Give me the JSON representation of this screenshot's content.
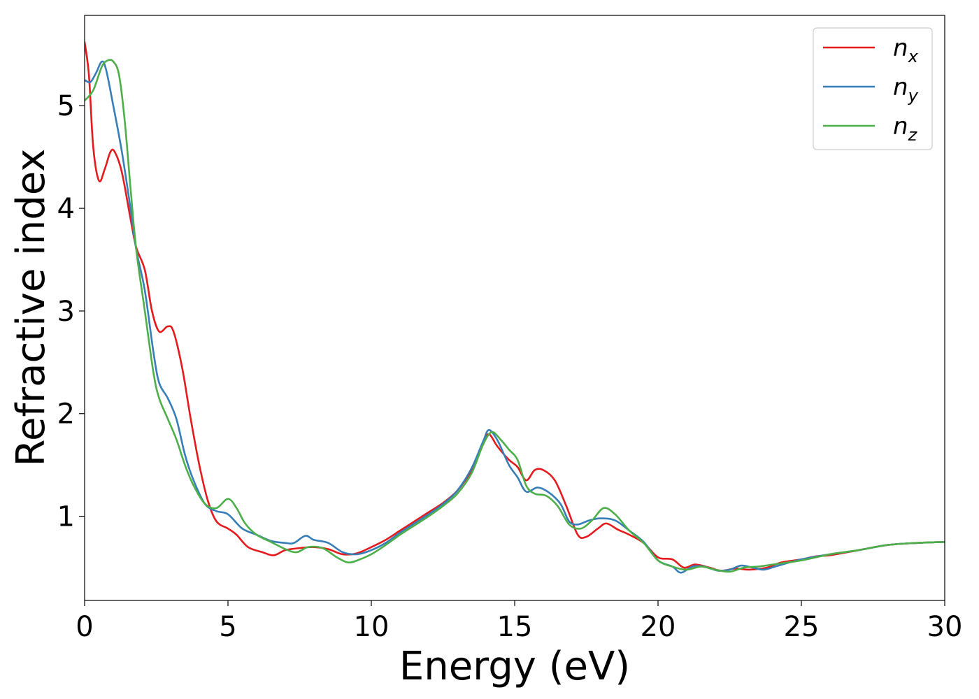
{
  "chart_data": {
    "type": "line",
    "title": "",
    "xlabel": "Energy (eV)",
    "ylabel": "Refractive index",
    "xlim": [
      0,
      30
    ],
    "ylim": [
      0.18,
      5.88
    ],
    "xticks": [
      0,
      5,
      10,
      15,
      20,
      25,
      30
    ],
    "yticks": [
      1,
      2,
      3,
      4,
      5
    ],
    "grid": false,
    "legend_position": "top-right",
    "series": [
      {
        "name": "n_x",
        "label_base": "n",
        "label_sub": "x",
        "color": "#e41a1c",
        "points": [
          [
            0,
            5.62
          ],
          [
            0.15,
            5.3
          ],
          [
            0.3,
            4.6
          ],
          [
            0.5,
            4.27
          ],
          [
            0.7,
            4.38
          ],
          [
            0.9,
            4.55
          ],
          [
            1.05,
            4.55
          ],
          [
            1.3,
            4.35
          ],
          [
            1.6,
            3.9
          ],
          [
            1.8,
            3.62
          ],
          [
            2.1,
            3.4
          ],
          [
            2.35,
            3.0
          ],
          [
            2.6,
            2.8
          ],
          [
            2.9,
            2.85
          ],
          [
            3.1,
            2.8
          ],
          [
            3.4,
            2.45
          ],
          [
            3.7,
            1.95
          ],
          [
            4.0,
            1.5
          ],
          [
            4.3,
            1.15
          ],
          [
            4.6,
            0.95
          ],
          [
            5.0,
            0.88
          ],
          [
            5.3,
            0.82
          ],
          [
            5.7,
            0.7
          ],
          [
            6.2,
            0.65
          ],
          [
            6.6,
            0.62
          ],
          [
            7.0,
            0.67
          ],
          [
            7.5,
            0.69
          ],
          [
            8.0,
            0.7
          ],
          [
            8.5,
            0.68
          ],
          [
            9.0,
            0.63
          ],
          [
            9.5,
            0.64
          ],
          [
            10.0,
            0.7
          ],
          [
            10.5,
            0.77
          ],
          [
            11.0,
            0.86
          ],
          [
            11.5,
            0.95
          ],
          [
            12.0,
            1.04
          ],
          [
            12.5,
            1.13
          ],
          [
            13.0,
            1.25
          ],
          [
            13.5,
            1.45
          ],
          [
            13.9,
            1.7
          ],
          [
            14.1,
            1.8
          ],
          [
            14.4,
            1.68
          ],
          [
            14.8,
            1.55
          ],
          [
            15.1,
            1.48
          ],
          [
            15.4,
            1.35
          ],
          [
            15.7,
            1.45
          ],
          [
            16.0,
            1.45
          ],
          [
            16.4,
            1.35
          ],
          [
            16.8,
            1.1
          ],
          [
            17.2,
            0.82
          ],
          [
            17.5,
            0.8
          ],
          [
            17.9,
            0.88
          ],
          [
            18.2,
            0.93
          ],
          [
            18.6,
            0.87
          ],
          [
            19.0,
            0.82
          ],
          [
            19.5,
            0.74
          ],
          [
            20.0,
            0.6
          ],
          [
            20.5,
            0.58
          ],
          [
            20.9,
            0.5
          ],
          [
            21.3,
            0.53
          ],
          [
            21.8,
            0.5
          ],
          [
            22.2,
            0.47
          ],
          [
            22.7,
            0.49
          ],
          [
            23.2,
            0.48
          ],
          [
            23.8,
            0.5
          ],
          [
            24.3,
            0.55
          ],
          [
            25.0,
            0.58
          ],
          [
            25.5,
            0.61
          ],
          [
            26.0,
            0.62
          ],
          [
            27.0,
            0.67
          ],
          [
            28.0,
            0.72
          ],
          [
            29.0,
            0.74
          ],
          [
            30.0,
            0.75
          ]
        ]
      },
      {
        "name": "n_y",
        "label_base": "n",
        "label_sub": "y",
        "color": "#377eb8",
        "points": [
          [
            0,
            5.25
          ],
          [
            0.2,
            5.23
          ],
          [
            0.4,
            5.32
          ],
          [
            0.6,
            5.43
          ],
          [
            0.75,
            5.35
          ],
          [
            1.0,
            5.0
          ],
          [
            1.3,
            4.55
          ],
          [
            1.6,
            4.0
          ],
          [
            1.8,
            3.6
          ],
          [
            2.1,
            3.2
          ],
          [
            2.4,
            2.6
          ],
          [
            2.6,
            2.3
          ],
          [
            2.9,
            2.15
          ],
          [
            3.2,
            1.95
          ],
          [
            3.5,
            1.6
          ],
          [
            3.8,
            1.35
          ],
          [
            4.2,
            1.12
          ],
          [
            4.6,
            1.05
          ],
          [
            5.0,
            1.02
          ],
          [
            5.5,
            0.88
          ],
          [
            6.0,
            0.82
          ],
          [
            6.5,
            0.76
          ],
          [
            7.0,
            0.74
          ],
          [
            7.3,
            0.74
          ],
          [
            7.7,
            0.81
          ],
          [
            8.0,
            0.77
          ],
          [
            8.5,
            0.74
          ],
          [
            9.0,
            0.65
          ],
          [
            9.5,
            0.63
          ],
          [
            10.0,
            0.67
          ],
          [
            10.5,
            0.74
          ],
          [
            11.0,
            0.84
          ],
          [
            11.5,
            0.93
          ],
          [
            12.0,
            1.02
          ],
          [
            12.5,
            1.12
          ],
          [
            13.0,
            1.25
          ],
          [
            13.5,
            1.47
          ],
          [
            13.9,
            1.73
          ],
          [
            14.1,
            1.84
          ],
          [
            14.4,
            1.74
          ],
          [
            14.8,
            1.5
          ],
          [
            15.1,
            1.38
          ],
          [
            15.4,
            1.24
          ],
          [
            15.8,
            1.28
          ],
          [
            16.2,
            1.23
          ],
          [
            16.6,
            1.12
          ],
          [
            16.9,
            0.95
          ],
          [
            17.2,
            0.92
          ],
          [
            17.6,
            0.96
          ],
          [
            18.0,
            0.98
          ],
          [
            18.5,
            0.96
          ],
          [
            19.0,
            0.86
          ],
          [
            19.5,
            0.75
          ],
          [
            20.0,
            0.57
          ],
          [
            20.5,
            0.51
          ],
          [
            20.8,
            0.45
          ],
          [
            21.2,
            0.51
          ],
          [
            21.6,
            0.51
          ],
          [
            22.1,
            0.47
          ],
          [
            22.5,
            0.48
          ],
          [
            22.9,
            0.52
          ],
          [
            23.3,
            0.5
          ],
          [
            23.7,
            0.48
          ],
          [
            24.2,
            0.52
          ],
          [
            25.0,
            0.58
          ],
          [
            26.0,
            0.63
          ],
          [
            27.0,
            0.67
          ],
          [
            28.0,
            0.72
          ],
          [
            29.0,
            0.74
          ],
          [
            30.0,
            0.75
          ]
        ]
      },
      {
        "name": "n_z",
        "label_base": "n",
        "label_sub": "z",
        "color": "#4daf4a",
        "points": [
          [
            0,
            5.05
          ],
          [
            0.3,
            5.15
          ],
          [
            0.6,
            5.38
          ],
          [
            0.8,
            5.44
          ],
          [
            1.0,
            5.43
          ],
          [
            1.2,
            5.3
          ],
          [
            1.4,
            4.85
          ],
          [
            1.6,
            4.2
          ],
          [
            1.8,
            3.6
          ],
          [
            2.1,
            3.0
          ],
          [
            2.4,
            2.4
          ],
          [
            2.6,
            2.15
          ],
          [
            2.9,
            1.95
          ],
          [
            3.2,
            1.75
          ],
          [
            3.5,
            1.5
          ],
          [
            3.8,
            1.3
          ],
          [
            4.2,
            1.12
          ],
          [
            4.6,
            1.08
          ],
          [
            5.0,
            1.17
          ],
          [
            5.3,
            1.08
          ],
          [
            5.6,
            0.93
          ],
          [
            6.0,
            0.82
          ],
          [
            6.5,
            0.75
          ],
          [
            7.0,
            0.68
          ],
          [
            7.4,
            0.65
          ],
          [
            7.8,
            0.7
          ],
          [
            8.3,
            0.69
          ],
          [
            8.8,
            0.6
          ],
          [
            9.2,
            0.55
          ],
          [
            9.6,
            0.58
          ],
          [
            10.0,
            0.63
          ],
          [
            10.5,
            0.72
          ],
          [
            11.0,
            0.82
          ],
          [
            11.5,
            0.91
          ],
          [
            12.0,
            1.0
          ],
          [
            12.5,
            1.1
          ],
          [
            13.0,
            1.22
          ],
          [
            13.5,
            1.42
          ],
          [
            13.9,
            1.7
          ],
          [
            14.2,
            1.82
          ],
          [
            14.5,
            1.75
          ],
          [
            14.8,
            1.65
          ],
          [
            15.1,
            1.55
          ],
          [
            15.4,
            1.3
          ],
          [
            15.7,
            1.22
          ],
          [
            16.1,
            1.2
          ],
          [
            16.5,
            1.1
          ],
          [
            16.9,
            0.92
          ],
          [
            17.3,
            0.88
          ],
          [
            17.7,
            0.96
          ],
          [
            18.1,
            1.08
          ],
          [
            18.5,
            1.02
          ],
          [
            19.0,
            0.86
          ],
          [
            19.5,
            0.74
          ],
          [
            20.0,
            0.57
          ],
          [
            20.5,
            0.51
          ],
          [
            21.0,
            0.48
          ],
          [
            21.5,
            0.51
          ],
          [
            22.0,
            0.48
          ],
          [
            22.5,
            0.46
          ],
          [
            23.0,
            0.5
          ],
          [
            23.5,
            0.51
          ],
          [
            24.0,
            0.53
          ],
          [
            25.0,
            0.57
          ],
          [
            26.0,
            0.63
          ],
          [
            27.0,
            0.67
          ],
          [
            28.0,
            0.72
          ],
          [
            29.0,
            0.74
          ],
          [
            30.0,
            0.75
          ]
        ]
      }
    ]
  }
}
